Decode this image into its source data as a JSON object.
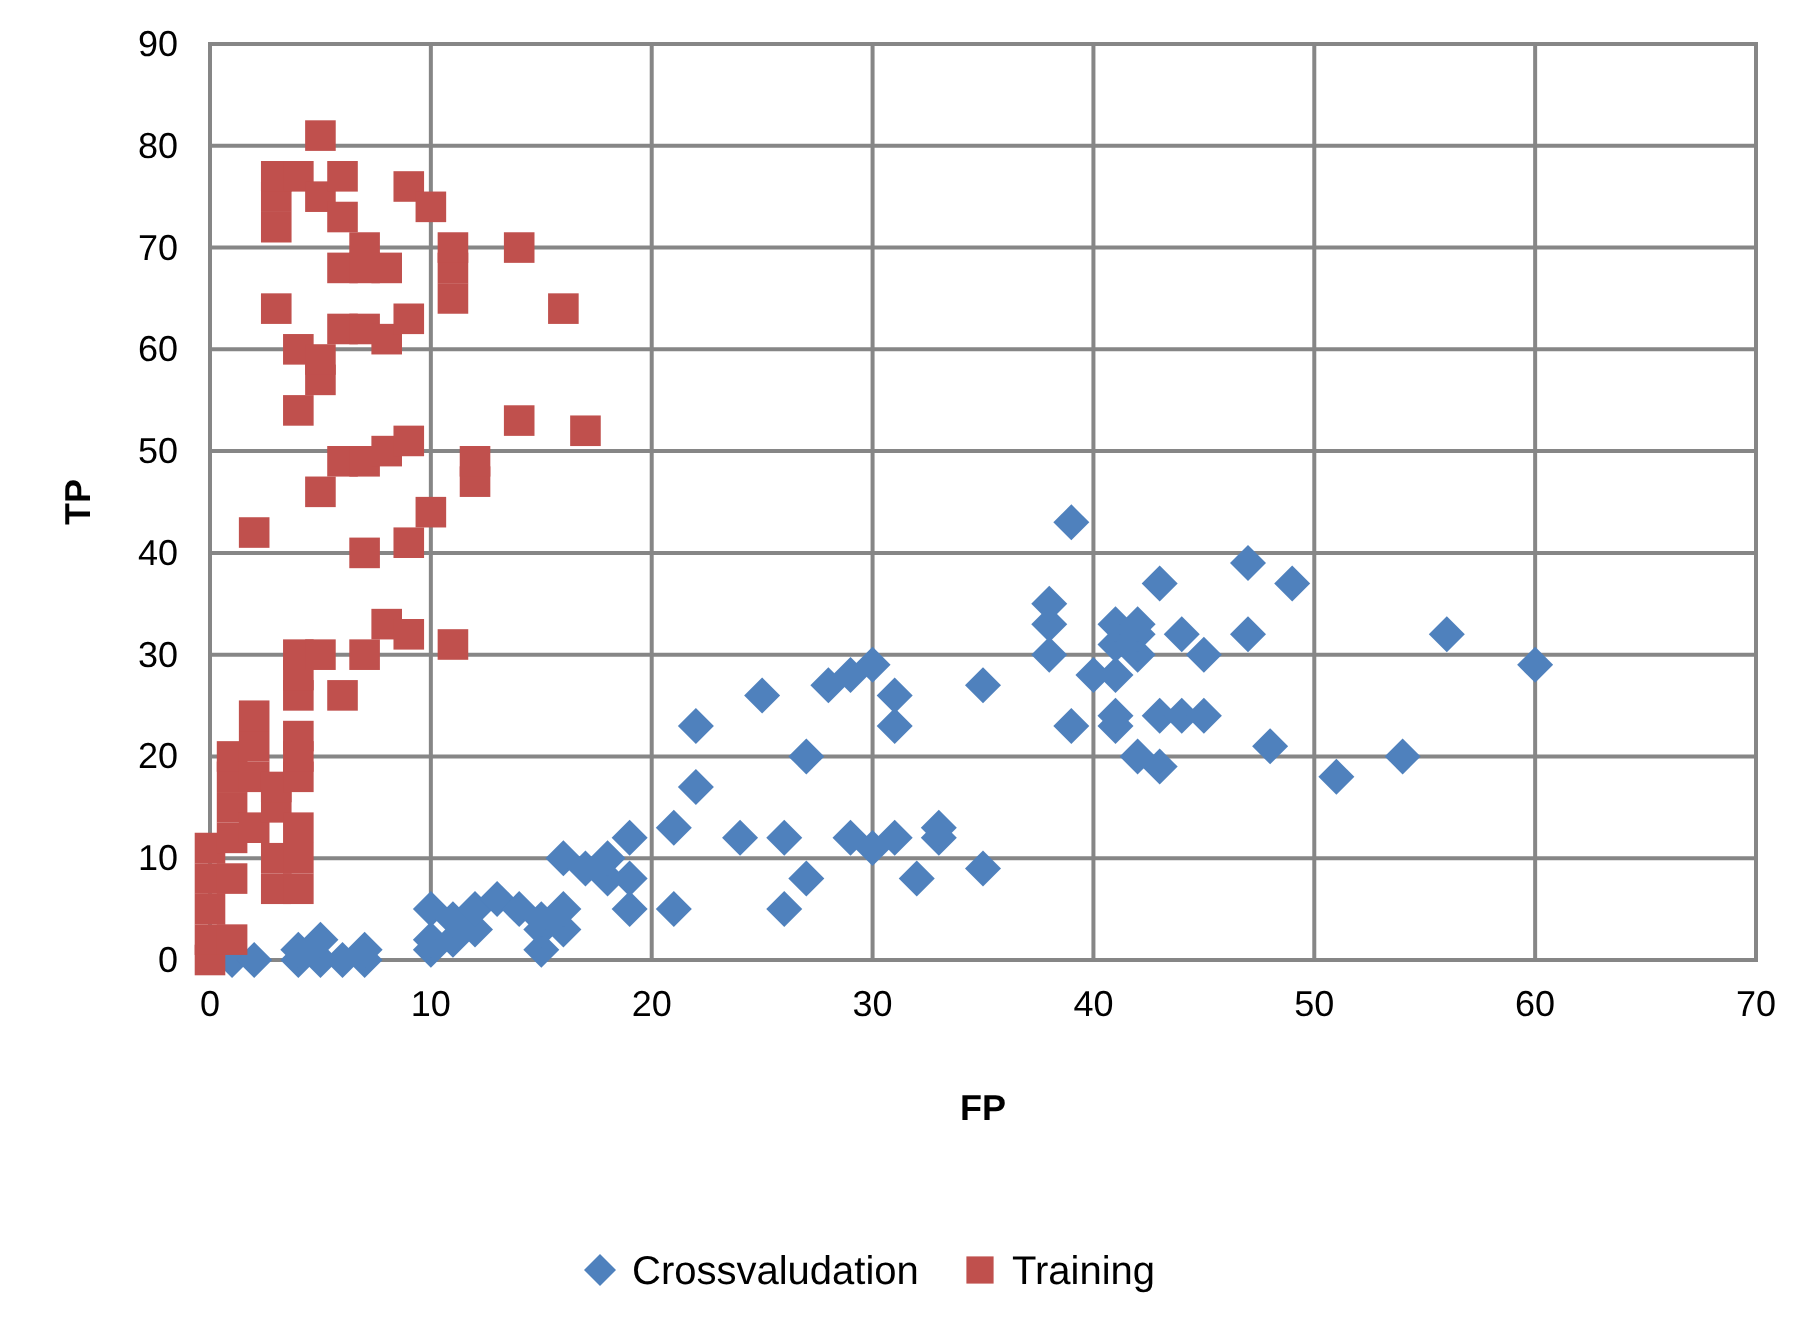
{
  "chart_data": {
    "type": "scatter",
    "xlabel": "FP",
    "ylabel": "TP",
    "xlim": [
      0,
      70
    ],
    "xticks": [
      0,
      10,
      20,
      30,
      40,
      50,
      60,
      70
    ],
    "ylim": [
      0,
      90
    ],
    "yticks": [
      0,
      10,
      20,
      30,
      40,
      50,
      60,
      70,
      80,
      90
    ],
    "grid": true,
    "legend": "bottom",
    "series": [
      {
        "name": "Crossvaludation",
        "color": "#4f81bd",
        "marker": "diamond",
        "x": [
          1,
          2,
          4,
          4,
          5,
          5,
          6,
          7,
          7,
          10,
          10,
          10,
          11,
          11,
          12,
          12,
          13,
          14,
          15,
          15,
          15,
          16,
          16,
          16,
          17,
          18,
          18,
          19,
          19,
          19,
          21,
          21,
          22,
          22,
          24,
          25,
          26,
          26,
          27,
          27,
          28,
          29,
          29,
          30,
          30,
          31,
          31,
          31,
          32,
          33,
          33,
          35,
          35,
          38,
          38,
          38,
          39,
          39,
          40,
          41,
          41,
          41,
          41,
          41,
          42,
          42,
          42,
          42,
          43,
          43,
          43,
          44,
          44,
          45,
          45,
          47,
          47,
          48,
          49,
          51,
          54,
          56,
          60
        ],
        "values": [
          0,
          0,
          0,
          1,
          0,
          2,
          0,
          0,
          1,
          1,
          2,
          5,
          2,
          4,
          3,
          5,
          6,
          5,
          1,
          3,
          4,
          3,
          5,
          10,
          9,
          8,
          10,
          5,
          8,
          12,
          5,
          13,
          17,
          23,
          12,
          26,
          5,
          12,
          8,
          20,
          27,
          12,
          28,
          11,
          29,
          12,
          23,
          26,
          8,
          12,
          13,
          9,
          27,
          30,
          33,
          35,
          23,
          43,
          28,
          23,
          24,
          28,
          31,
          33,
          20,
          30,
          32,
          33,
          19,
          24,
          37,
          24,
          32,
          24,
          30,
          32,
          39,
          21,
          37,
          18,
          20,
          32,
          29
        ]
      },
      {
        "name": "Training",
        "color": "#c0504d",
        "marker": "square",
        "x": [
          0,
          0,
          0,
          0,
          0,
          1,
          1,
          1,
          1,
          1,
          1,
          2,
          2,
          2,
          2,
          2,
          3,
          3,
          3,
          3,
          3,
          3,
          3,
          3,
          4,
          4,
          4,
          4,
          4,
          4,
          4,
          4,
          4,
          4,
          4,
          4,
          5,
          5,
          5,
          5,
          5,
          5,
          6,
          6,
          6,
          6,
          6,
          6,
          7,
          7,
          7,
          7,
          7,
          7,
          8,
          8,
          8,
          8,
          9,
          9,
          9,
          9,
          9,
          10,
          10,
          11,
          11,
          11,
          11,
          12,
          12,
          14,
          14,
          16,
          17
        ],
        "values": [
          0,
          2,
          5,
          8,
          11,
          2,
          8,
          12,
          15,
          18,
          20,
          13,
          18,
          21,
          24,
          42,
          7,
          10,
          15,
          17,
          64,
          72,
          75,
          77,
          7,
          10,
          13,
          18,
          20,
          22,
          26,
          28,
          30,
          54,
          60,
          77,
          30,
          46,
          57,
          59,
          75,
          81,
          26,
          49,
          62,
          68,
          73,
          77,
          30,
          40,
          49,
          62,
          70,
          68,
          33,
          50,
          61,
          68,
          32,
          41,
          51,
          63,
          76,
          44,
          74,
          31,
          65,
          68,
          70,
          47,
          49,
          53,
          70,
          64,
          52
        ]
      }
    ]
  }
}
